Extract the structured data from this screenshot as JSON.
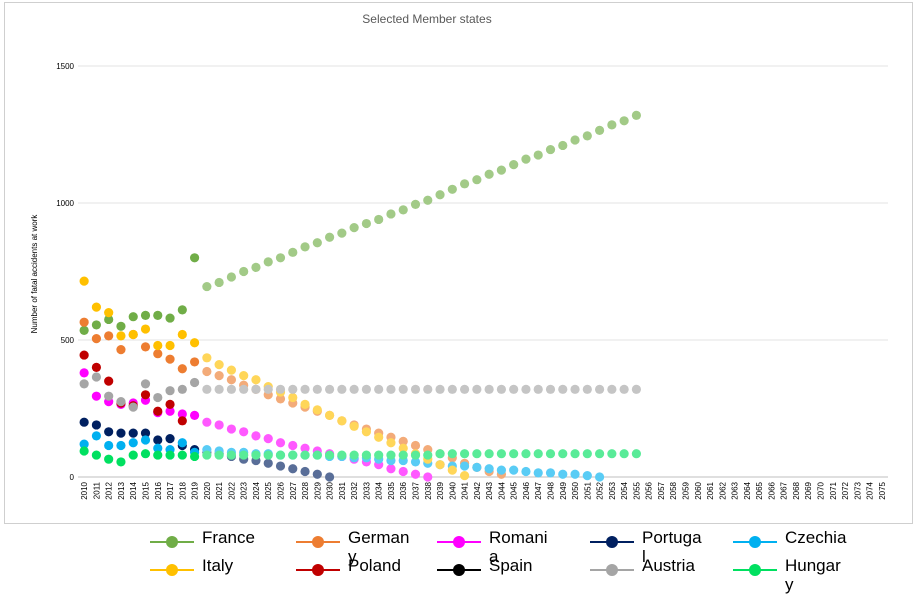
{
  "chart_data": {
    "type": "scatter",
    "title": "Selected Member states",
    "ylabel": "Number of fatal accidents at work",
    "xlabel": "",
    "ylim": [
      0,
      1500
    ],
    "yticks": [
      0,
      500,
      1000,
      1500
    ],
    "x": [
      2010,
      2011,
      2012,
      2013,
      2014,
      2015,
      2016,
      2017,
      2018,
      2019,
      2020,
      2021,
      2022,
      2023,
      2024,
      2025,
      2026,
      2027,
      2028,
      2029,
      2030,
      2031,
      2032,
      2033,
      2034,
      2035,
      2036,
      2037,
      2038,
      2039,
      2040,
      2041,
      2042,
      2043,
      2044,
      2045,
      2046,
      2047,
      2048,
      2049,
      2050,
      2051,
      2052,
      2053,
      2054,
      2055,
      2056,
      2057,
      2058,
      2059,
      2060,
      2061,
      2062,
      2063,
      2064,
      2065,
      2066,
      2067,
      2068,
      2069,
      2070,
      2071,
      2072,
      2073,
      2074,
      2075
    ],
    "grid": "horizontal",
    "legend_position": "bottom",
    "series": [
      {
        "name": "France",
        "color": "#70ad47",
        "values": [
          535,
          555,
          575,
          550,
          585,
          590,
          590,
          580,
          610,
          800,
          695,
          710,
          730,
          750,
          765,
          785,
          800,
          820,
          840,
          855,
          875,
          890,
          910,
          925,
          940,
          960,
          975,
          995,
          1010,
          1030,
          1050,
          1070,
          1085,
          1105,
          1120,
          1140,
          1160,
          1175,
          1195,
          1210,
          1230,
          1245,
          1265,
          1285,
          1300,
          1320
        ]
      },
      {
        "name": "Germany",
        "color": "#ed7d31",
        "values": [
          565,
          505,
          515,
          465,
          520,
          475,
          450,
          430,
          395,
          420,
          385,
          370,
          355,
          335,
          320,
          300,
          285,
          270,
          255,
          240,
          225,
          205,
          190,
          175,
          160,
          145,
          130,
          115,
          100,
          85,
          70,
          50,
          35,
          20,
          10
        ]
      },
      {
        "name": "Romania",
        "color": "#ff00ff",
        "values": [
          380,
          295,
          275,
          265,
          270,
          280,
          235,
          240,
          230,
          225,
          200,
          190,
          175,
          165,
          150,
          140,
          125,
          115,
          105,
          95,
          85,
          75,
          65,
          55,
          45,
          30,
          20,
          10,
          0
        ]
      },
      {
        "name": "Portugal",
        "color": "#002060",
        "values": [
          200,
          190,
          165,
          160,
          160,
          160,
          135,
          140,
          115,
          100,
          90,
          85,
          75,
          65,
          60,
          50,
          40,
          30,
          20,
          10,
          0
        ]
      },
      {
        "name": "Czechia",
        "color": "#00b0f0",
        "values": [
          120,
          150,
          115,
          115,
          125,
          135,
          105,
          100,
          125,
          90,
          100,
          95,
          90,
          90,
          85,
          85,
          80,
          80,
          80,
          80,
          75,
          75,
          70,
          70,
          65,
          60,
          60,
          55,
          50,
          45,
          40,
          40,
          35,
          30,
          25,
          25,
          20,
          15,
          15,
          10,
          10,
          5,
          0
        ]
      },
      {
        "name": "Italy",
        "color": "#ffc000",
        "values": [
          715,
          620,
          600,
          515,
          520,
          540,
          480,
          480,
          520,
          490,
          435,
          410,
          390,
          370,
          355,
          330,
          310,
          290,
          265,
          245,
          225,
          205,
          185,
          165,
          145,
          125,
          105,
          85,
          65,
          45,
          25,
          5
        ]
      },
      {
        "name": "Poland",
        "color": "#c00000",
        "values": [
          445,
          400,
          350,
          270,
          260,
          300,
          240,
          265,
          205
        ]
      },
      {
        "name": "Spain",
        "color": "#000000",
        "values": []
      },
      {
        "name": "Austria",
        "color": "#a5a5a5",
        "values": [
          340,
          365,
          295,
          275,
          255,
          340,
          290,
          315,
          320,
          345,
          320,
          320,
          320,
          320,
          320,
          320,
          320,
          320,
          320,
          320,
          320,
          320,
          320,
          320,
          320,
          320,
          320,
          320,
          320,
          320,
          320,
          320,
          320,
          320,
          320,
          320,
          320,
          320,
          320,
          320,
          320,
          320,
          320,
          320,
          320,
          320
        ]
      },
      {
        "name": "Hungary",
        "color": "#00e060",
        "values": [
          95,
          80,
          65,
          55,
          80,
          85,
          80,
          80,
          80,
          75,
          80,
          80,
          80,
          80,
          80,
          80,
          80,
          80,
          80,
          80,
          80,
          80,
          80,
          80,
          80,
          80,
          80,
          80,
          80,
          85,
          85,
          85,
          85,
          85,
          85,
          85,
          85,
          85,
          85,
          85,
          85,
          85,
          85,
          85,
          85,
          85
        ]
      }
    ]
  }
}
